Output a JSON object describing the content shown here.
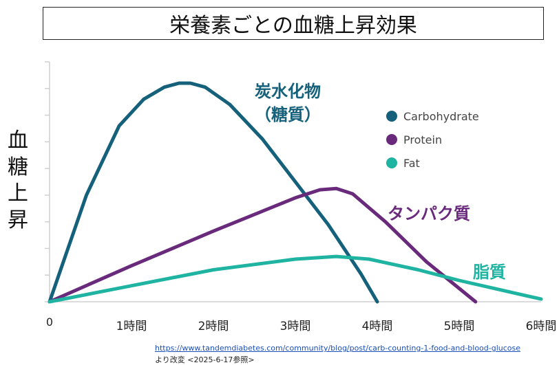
{
  "chart_data": {
    "type": "line",
    "title": "栄養素ごとの血糖上昇効果",
    "ylabel": "血糖上昇",
    "xlabel": "",
    "x_ticks": [
      "0",
      "1時間",
      "2時間",
      "3時間",
      "4時間",
      "5時間",
      "6時間"
    ],
    "x_tick_values": [
      0,
      1,
      2,
      3,
      4,
      5,
      6
    ],
    "xlim": [
      0,
      6
    ],
    "ylim": [
      0,
      9
    ],
    "series": [
      {
        "name": "Carbohydrate",
        "label": "炭水化物\n（糖質）",
        "color": "#15607a",
        "x": [
          0,
          0.45,
          0.85,
          1.15,
          1.4,
          1.58,
          1.72,
          1.9,
          2.2,
          2.6,
          3.0,
          3.4,
          3.8,
          4.0
        ],
        "y": [
          0,
          4.0,
          6.6,
          7.6,
          8.05,
          8.2,
          8.2,
          8.05,
          7.4,
          6.1,
          4.5,
          2.9,
          1.05,
          0
        ]
      },
      {
        "name": "Protein",
        "label": "タンパク質",
        "color": "#6a2a7c",
        "x": [
          0,
          1.0,
          2.0,
          3.0,
          3.3,
          3.5,
          3.7,
          4.1,
          4.6,
          5.2
        ],
        "y": [
          0,
          1.35,
          2.65,
          3.9,
          4.2,
          4.25,
          4.05,
          3.0,
          1.5,
          0
        ]
      },
      {
        "name": "Fat",
        "label": "脂質",
        "color": "#1fb3a2",
        "x": [
          0,
          1.0,
          2.0,
          3.0,
          3.5,
          3.9,
          4.5,
          5.0,
          5.5,
          6.0
        ],
        "y": [
          0,
          0.6,
          1.2,
          1.6,
          1.7,
          1.6,
          1.2,
          0.8,
          0.45,
          0.1
        ]
      }
    ],
    "legend": {
      "placement": "top-right",
      "entries": [
        "Carbohydrate",
        "Protein",
        "Fat"
      ]
    },
    "grid": false
  },
  "source": {
    "url": "https://www.tandemdiabetes.com/community/blog/post/carb-counting-1-food-and-blood-glucose",
    "note": "より改変 <2025-6-17参照>"
  }
}
